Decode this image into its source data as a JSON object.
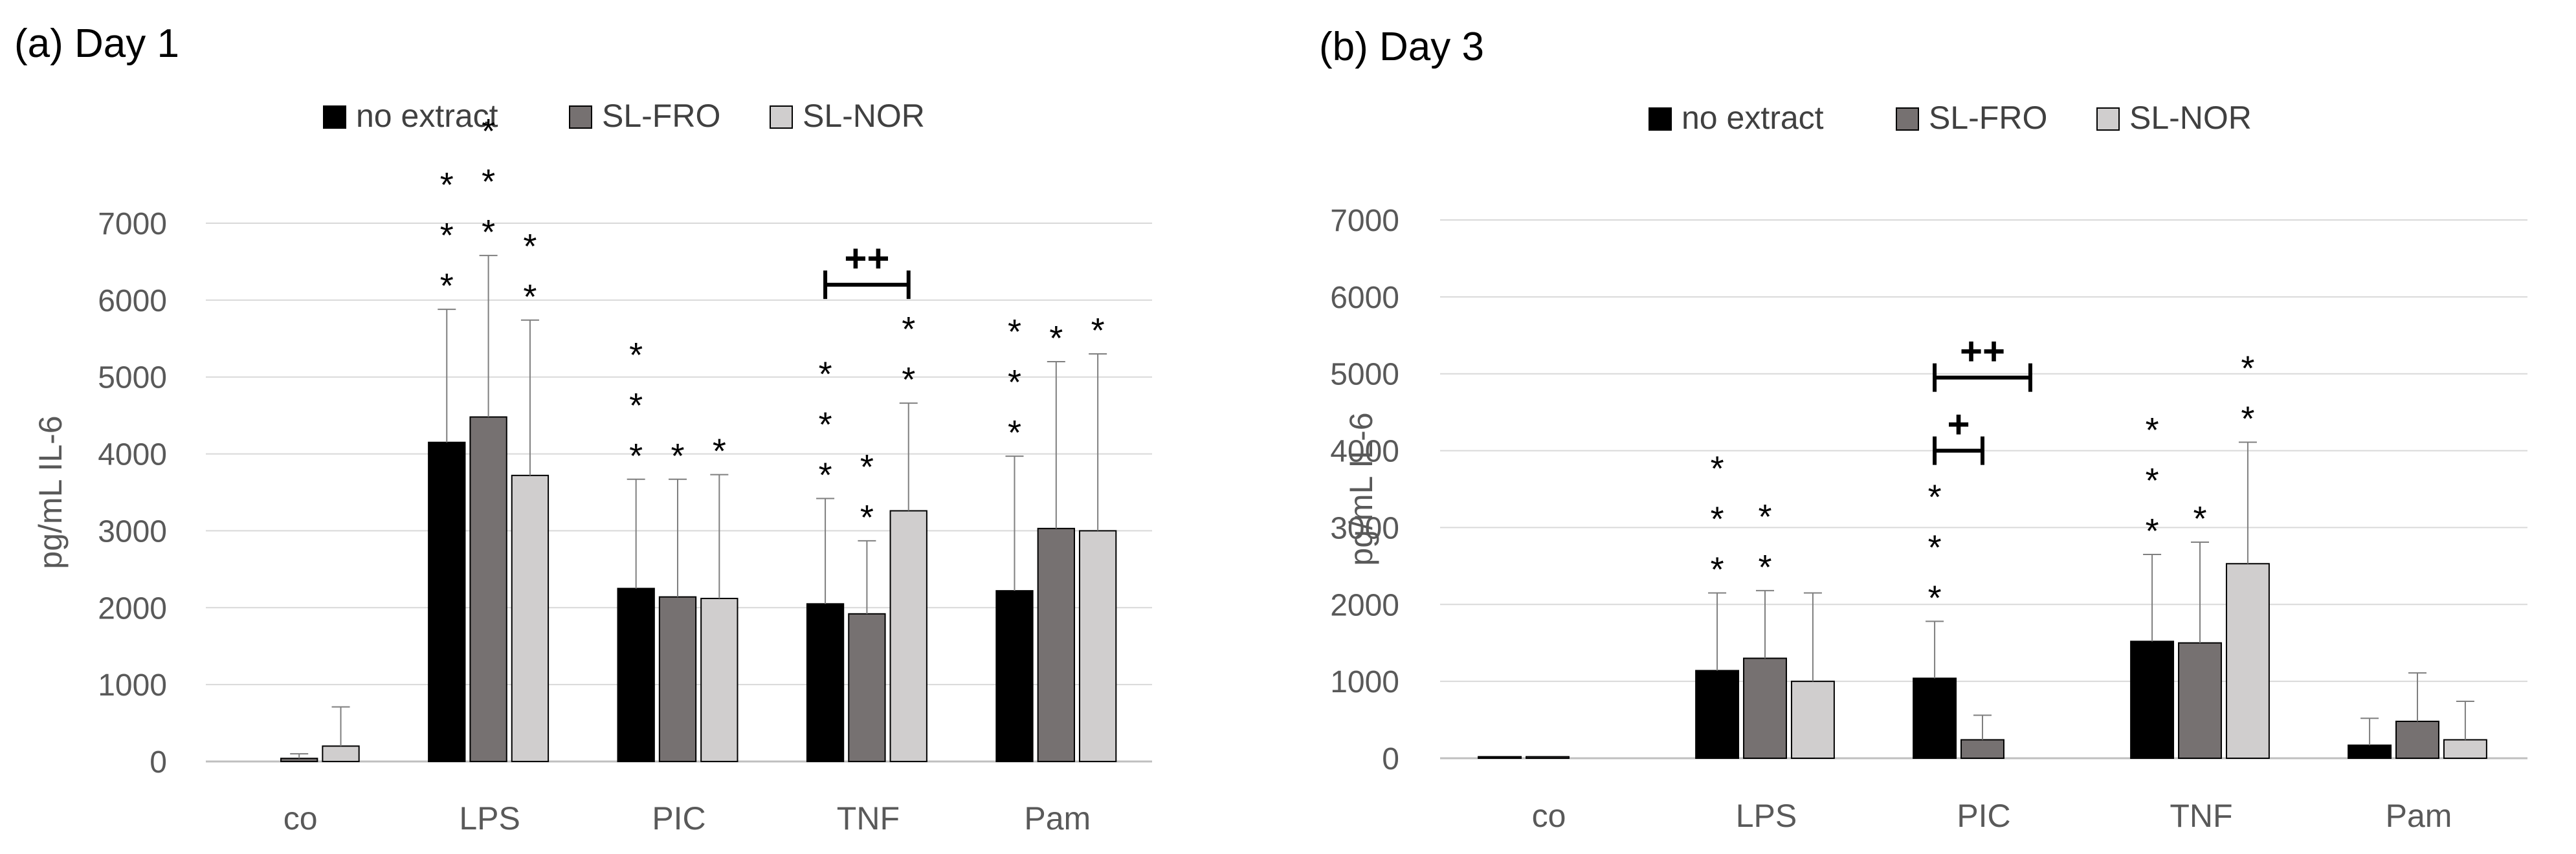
{
  "chart_data": [
    {
      "type": "bar",
      "panel_title": "(a) Day 1",
      "ylabel": "pg/mL IL-6",
      "ylim": [
        0,
        7000
      ],
      "yticks": [
        0,
        1000,
        2000,
        3000,
        4000,
        5000,
        6000,
        7000
      ],
      "grid": true,
      "legend_position": "top",
      "categories": [
        "co",
        "LPS",
        "PIC",
        "TNF",
        "Pam"
      ],
      "series": [
        {
          "name": "no extract",
          "color": "#000000",
          "values": [
            0,
            4150,
            2250,
            2050,
            2220
          ],
          "errors": [
            0,
            1730,
            1420,
            1370,
            1750
          ]
        },
        {
          "name": "SL-FRO",
          "color": "#767171",
          "values": [
            40,
            4480,
            2140,
            1920,
            3030
          ],
          "errors": [
            60,
            2100,
            1530,
            950,
            2170
          ]
        },
        {
          "name": "SL-NOR",
          "color": "#d0cece",
          "values": [
            200,
            3720,
            2120,
            3260,
            3000
          ],
          "errors": [
            510,
            2020,
            1610,
            1400,
            2300
          ]
        }
      ],
      "significance_marks": [
        {
          "category": "LPS",
          "series": "no extract",
          "label": "***"
        },
        {
          "category": "LPS",
          "series": "SL-FRO",
          "label": "***"
        },
        {
          "category": "LPS",
          "series": "SL-NOR",
          "label": "**"
        },
        {
          "category": "PIC",
          "series": "no extract",
          "label": "***"
        },
        {
          "category": "PIC",
          "series": "SL-FRO",
          "label": "*"
        },
        {
          "category": "PIC",
          "series": "SL-NOR",
          "label": "*"
        },
        {
          "category": "TNF",
          "series": "no extract",
          "label": "***"
        },
        {
          "category": "TNF",
          "series": "SL-FRO",
          "label": "**"
        },
        {
          "category": "TNF",
          "series": "SL-NOR",
          "label": "**"
        },
        {
          "category": "Pam",
          "series": "no extract",
          "label": "***"
        },
        {
          "category": "Pam",
          "series": "SL-FRO",
          "label": "*"
        },
        {
          "category": "Pam",
          "series": "SL-NOR",
          "label": "*"
        }
      ],
      "comparison_brackets": [
        {
          "category": "TNF",
          "from": "no extract",
          "to": "SL-NOR",
          "label": "++",
          "y": 6200
        }
      ]
    },
    {
      "type": "bar",
      "panel_title": "(b) Day 3",
      "ylabel": "pg/mL IL-6",
      "ylim": [
        0,
        7000
      ],
      "yticks": [
        0,
        1000,
        2000,
        3000,
        4000,
        5000,
        6000,
        7000
      ],
      "grid": true,
      "legend_position": "top",
      "categories": [
        "co",
        "LPS",
        "PIC",
        "TNF",
        "Pam"
      ],
      "series": [
        {
          "name": "no extract",
          "color": "#000000",
          "values": [
            20,
            1140,
            1040,
            1520,
            170
          ],
          "errors": [
            0,
            1010,
            740,
            1130,
            350
          ]
        },
        {
          "name": "SL-FRO",
          "color": "#767171",
          "values": [
            20,
            1300,
            240,
            1500,
            480
          ],
          "errors": [
            0,
            880,
            320,
            1310,
            630
          ]
        },
        {
          "name": "SL-NOR",
          "color": "#d0cece",
          "values": [
            0,
            1000,
            0,
            2530,
            240
          ],
          "errors": [
            0,
            1150,
            0,
            1580,
            500
          ]
        }
      ],
      "significance_marks": [
        {
          "category": "LPS",
          "series": "no extract",
          "label": "***"
        },
        {
          "category": "LPS",
          "series": "SL-FRO",
          "label": "**"
        },
        {
          "category": "PIC",
          "series": "no extract",
          "label": "***"
        },
        {
          "category": "TNF",
          "series": "no extract",
          "label": "***"
        },
        {
          "category": "TNF",
          "series": "SL-FRO",
          "label": "*"
        },
        {
          "category": "TNF",
          "series": "SL-NOR",
          "label": "**"
        }
      ],
      "comparison_brackets": [
        {
          "category": "PIC",
          "from": "no extract",
          "to": "SL-NOR",
          "label": "++",
          "y": 4950
        },
        {
          "category": "PIC",
          "from": "no extract",
          "to": "SL-FRO",
          "label": "+",
          "y": 4000
        }
      ]
    }
  ]
}
